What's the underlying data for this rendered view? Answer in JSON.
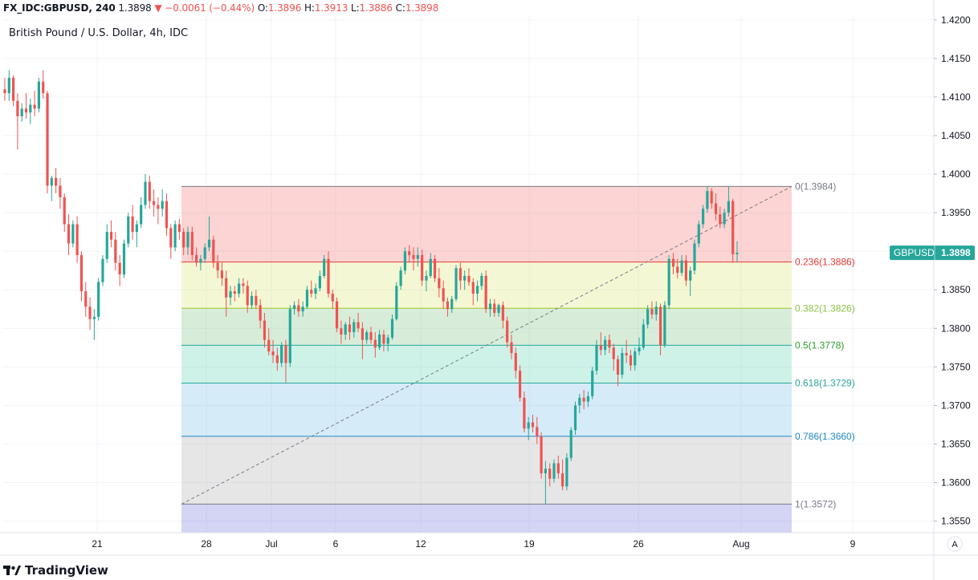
{
  "header": {
    "symbol": "FX_IDC:GBPUSD, 240",
    "last": "1.3898",
    "change": "−0.0061 (−0.44%)",
    "o_label": "O:",
    "o_value": "1.3896",
    "h_label": "H:",
    "h_value": "1.3913",
    "l_label": "L:",
    "l_value": "1.3886",
    "c_label": "C:",
    "c_value": "1.3898"
  },
  "subtitle": "British Pound / U.S. Dollar, 4h, IDC",
  "branding": "TradingView",
  "auto_scale_button": "A",
  "price_badge": {
    "symbol": "GBPUSD",
    "price": "1.3898",
    "color": "#26a69a"
  },
  "colors": {
    "up": "#26a69a",
    "down": "#ef5350",
    "grid": "#f0f3fa",
    "axis_text": "#131722"
  },
  "chart_data": {
    "type": "candlestick",
    "title": "British Pound / U.S. Dollar, 4h, IDC",
    "ylim": [
      1.3535,
      1.4205
    ],
    "y_ticks": [
      "1.4200",
      "1.4150",
      "1.4100",
      "1.4050",
      "1.4000",
      "1.3950",
      "1.3900",
      "1.3850",
      "1.3800",
      "1.3750",
      "1.3700",
      "1.3650",
      "1.3600",
      "1.3550"
    ],
    "x_ticks": [
      "21",
      "28",
      "Jul",
      "6",
      "12",
      "19",
      "26",
      "Aug",
      "9"
    ],
    "grid": true,
    "fibonacci": {
      "high": 1.3984,
      "low": 1.3572,
      "levels": [
        {
          "label": "0(1.3984)",
          "value": 1.3984,
          "line": "#787b86",
          "fill": "rgba(239,83,80,0.25)"
        },
        {
          "label": "0.236(1.3886)",
          "value": 1.3886,
          "line": "#e53935",
          "fill": "rgba(205,220,57,0.22)"
        },
        {
          "label": "0.382(1.3826)",
          "value": 1.3826,
          "line": "#9cc62a",
          "fill": "rgba(76,175,80,0.22)"
        },
        {
          "label": "0.5(1.3778)",
          "value": 1.3778,
          "line": "#26a69a",
          "fill": "rgba(38,198,150,0.22)"
        },
        {
          "label": "0.618(1.3729)",
          "value": 1.3729,
          "line": "#26a69a",
          "fill": "rgba(66,165,220,0.22)"
        },
        {
          "label": "0.786(1.3660)",
          "value": 1.366,
          "line": "#1e88c5",
          "fill": "rgba(140,140,140,0.22)"
        },
        {
          "label": "1(1.3572)",
          "value": 1.3572,
          "line": "#787b86",
          "fill": "rgba(100,100,220,0.28)"
        }
      ],
      "label_colors": [
        "#787b86",
        "#e53935",
        "#8bc34a",
        "#2e9d2e",
        "#26a69a",
        "#1e88c5",
        "#787b86"
      ]
    },
    "candles": [
      [
        1.411,
        1.4125,
        1.4095,
        1.4105
      ],
      [
        1.4105,
        1.4135,
        1.4095,
        1.4125
      ],
      [
        1.4125,
        1.4128,
        1.4088,
        1.4095
      ],
      [
        1.4095,
        1.4105,
        1.4032,
        1.4075
      ],
      [
        1.4075,
        1.4092,
        1.4068,
        1.4085
      ],
      [
        1.4085,
        1.4105,
        1.4072,
        1.408
      ],
      [
        1.408,
        1.4098,
        1.4065,
        1.409
      ],
      [
        1.409,
        1.4108,
        1.4075,
        1.4085
      ],
      [
        1.4085,
        1.4125,
        1.408,
        1.412
      ],
      [
        1.412,
        1.4135,
        1.4098,
        1.4105
      ],
      [
        1.4105,
        1.4108,
        1.3975,
        1.3985
      ],
      [
        1.3985,
        1.3998,
        1.3965,
        1.3995
      ],
      [
        1.3995,
        1.4008,
        1.3975,
        1.3985
      ],
      [
        1.3985,
        1.3995,
        1.3955,
        1.397
      ],
      [
        1.397,
        1.3975,
        1.3925,
        1.3935
      ],
      [
        1.3935,
        1.3948,
        1.3895,
        1.391
      ],
      [
        1.391,
        1.394,
        1.3905,
        1.3935
      ],
      [
        1.3935,
        1.3945,
        1.3885,
        1.3895
      ],
      [
        1.3895,
        1.39,
        1.3835,
        1.3848
      ],
      [
        1.3848,
        1.386,
        1.3815,
        1.3828
      ],
      [
        1.3828,
        1.384,
        1.3798,
        1.3812
      ],
      [
        1.3812,
        1.3825,
        1.3785,
        1.3815
      ],
      [
        1.3815,
        1.3865,
        1.381,
        1.386
      ],
      [
        1.386,
        1.3895,
        1.3855,
        1.389
      ],
      [
        1.389,
        1.3935,
        1.3885,
        1.3925
      ],
      [
        1.3925,
        1.394,
        1.3905,
        1.3915
      ],
      [
        1.3915,
        1.3925,
        1.3875,
        1.3885
      ],
      [
        1.3885,
        1.3895,
        1.3855,
        1.387
      ],
      [
        1.387,
        1.3915,
        1.3865,
        1.391
      ],
      [
        1.391,
        1.395,
        1.3905,
        1.3945
      ],
      [
        1.3945,
        1.396,
        1.3915,
        1.3925
      ],
      [
        1.3925,
        1.394,
        1.3905,
        1.3935
      ],
      [
        1.3935,
        1.397,
        1.393,
        1.396
      ],
      [
        1.396,
        1.4,
        1.3955,
        1.399
      ],
      [
        1.399,
        1.3998,
        1.3955,
        1.3965
      ],
      [
        1.3965,
        1.398,
        1.3945,
        1.396
      ],
      [
        1.396,
        1.397,
        1.3935,
        1.3955
      ],
      [
        1.3955,
        1.398,
        1.3945,
        1.3965
      ],
      [
        1.3965,
        1.3975,
        1.392,
        1.393
      ],
      [
        1.393,
        1.3935,
        1.389,
        1.3905
      ],
      [
        1.3905,
        1.394,
        1.39,
        1.3935
      ],
      [
        1.3935,
        1.3942,
        1.3915,
        1.3925
      ],
      [
        1.3925,
        1.393,
        1.3895,
        1.3905
      ],
      [
        1.3905,
        1.3932,
        1.3895,
        1.3925
      ],
      [
        1.3925,
        1.3932,
        1.3888,
        1.3895
      ],
      [
        1.3895,
        1.3905,
        1.388,
        1.3885
      ],
      [
        1.3885,
        1.3895,
        1.3875,
        1.389
      ],
      [
        1.389,
        1.391,
        1.3885,
        1.3905
      ],
      [
        1.3905,
        1.3945,
        1.39,
        1.3915
      ],
      [
        1.3915,
        1.392,
        1.3878,
        1.3885
      ],
      [
        1.3885,
        1.3895,
        1.3865,
        1.3875
      ],
      [
        1.3875,
        1.3885,
        1.3855,
        1.3865
      ],
      [
        1.3865,
        1.3875,
        1.3815,
        1.384
      ],
      [
        1.384,
        1.3855,
        1.383,
        1.3848
      ],
      [
        1.3848,
        1.3855,
        1.3835,
        1.3845
      ],
      [
        1.3845,
        1.3865,
        1.384,
        1.3858
      ],
      [
        1.3858,
        1.3865,
        1.3845,
        1.3855
      ],
      [
        1.3855,
        1.3862,
        1.382,
        1.383
      ],
      [
        1.383,
        1.3848,
        1.3825,
        1.3842
      ],
      [
        1.3842,
        1.385,
        1.3825,
        1.383
      ],
      [
        1.383,
        1.3838,
        1.38,
        1.381
      ],
      [
        1.381,
        1.382,
        1.3775,
        1.3785
      ],
      [
        1.3785,
        1.38,
        1.3765,
        1.377
      ],
      [
        1.377,
        1.3785,
        1.3755,
        1.3765
      ],
      [
        1.3765,
        1.3775,
        1.3745,
        1.3755
      ],
      [
        1.3755,
        1.3782,
        1.375,
        1.3778
      ],
      [
        1.3778,
        1.3785,
        1.373,
        1.3755
      ],
      [
        1.3755,
        1.383,
        1.375,
        1.3825
      ],
      [
        1.3825,
        1.3835,
        1.3818,
        1.383
      ],
      [
        1.383,
        1.3838,
        1.3815,
        1.3822
      ],
      [
        1.3822,
        1.3835,
        1.3815,
        1.3828
      ],
      [
        1.3828,
        1.3855,
        1.3825,
        1.385
      ],
      [
        1.385,
        1.3862,
        1.384,
        1.3845
      ],
      [
        1.3845,
        1.3858,
        1.3838,
        1.3852
      ],
      [
        1.3852,
        1.3875,
        1.3848,
        1.3868
      ],
      [
        1.3868,
        1.3895,
        1.3865,
        1.389
      ],
      [
        1.389,
        1.39,
        1.384,
        1.3845
      ],
      [
        1.3845,
        1.385,
        1.3825,
        1.3835
      ],
      [
        1.3835,
        1.384,
        1.3795,
        1.38
      ],
      [
        1.38,
        1.381,
        1.378,
        1.3792
      ],
      [
        1.3792,
        1.3808,
        1.3785,
        1.3805
      ],
      [
        1.3805,
        1.3815,
        1.3785,
        1.3795
      ],
      [
        1.3795,
        1.3812,
        1.3788,
        1.3808
      ],
      [
        1.3808,
        1.382,
        1.3795,
        1.38
      ],
      [
        1.38,
        1.3808,
        1.376,
        1.3785
      ],
      [
        1.3785,
        1.3798,
        1.378,
        1.3795
      ],
      [
        1.3795,
        1.3802,
        1.378,
        1.3785
      ],
      [
        1.3785,
        1.3795,
        1.3762,
        1.3775
      ],
      [
        1.3775,
        1.3798,
        1.3772,
        1.3792
      ],
      [
        1.3792,
        1.3798,
        1.377,
        1.378
      ],
      [
        1.378,
        1.3792,
        1.377,
        1.3788
      ],
      [
        1.3788,
        1.3818,
        1.3785,
        1.3812
      ],
      [
        1.3812,
        1.386,
        1.381,
        1.3855
      ],
      [
        1.3855,
        1.388,
        1.385,
        1.3875
      ],
      [
        1.3875,
        1.3905,
        1.387,
        1.39
      ],
      [
        1.39,
        1.3908,
        1.3885,
        1.3895
      ],
      [
        1.3895,
        1.3905,
        1.3875,
        1.389
      ],
      [
        1.389,
        1.3905,
        1.388,
        1.3895
      ],
      [
        1.3895,
        1.3902,
        1.3855,
        1.3862
      ],
      [
        1.3862,
        1.3875,
        1.3848,
        1.3868
      ],
      [
        1.3868,
        1.3898,
        1.3865,
        1.389
      ],
      [
        1.389,
        1.3895,
        1.386,
        1.3865
      ],
      [
        1.3865,
        1.3878,
        1.384,
        1.3852
      ],
      [
        1.3852,
        1.3862,
        1.3825,
        1.3835
      ],
      [
        1.3835,
        1.384,
        1.3815,
        1.3825
      ],
      [
        1.3825,
        1.3842,
        1.382,
        1.3838
      ],
      [
        1.3838,
        1.3882,
        1.3835,
        1.3878
      ],
      [
        1.3878,
        1.3885,
        1.385,
        1.3862
      ],
      [
        1.3862,
        1.3875,
        1.385,
        1.3868
      ],
      [
        1.3868,
        1.3878,
        1.3855,
        1.386
      ],
      [
        1.386,
        1.3865,
        1.383,
        1.3845
      ],
      [
        1.3845,
        1.3862,
        1.3835,
        1.3855
      ],
      [
        1.3855,
        1.3872,
        1.385,
        1.3868
      ],
      [
        1.3868,
        1.3875,
        1.382,
        1.3825
      ],
      [
        1.3825,
        1.3838,
        1.3815,
        1.3832
      ],
      [
        1.3832,
        1.3838,
        1.3815,
        1.382
      ],
      [
        1.382,
        1.3832,
        1.3815,
        1.383
      ],
      [
        1.383,
        1.3835,
        1.38,
        1.381
      ],
      [
        1.381,
        1.3815,
        1.3775,
        1.3782
      ],
      [
        1.3782,
        1.3792,
        1.376,
        1.3768
      ],
      [
        1.3768,
        1.3775,
        1.3735,
        1.3745
      ],
      [
        1.3745,
        1.3752,
        1.3705,
        1.371
      ],
      [
        1.371,
        1.3718,
        1.3665,
        1.367
      ],
      [
        1.367,
        1.3685,
        1.3655,
        1.3678
      ],
      [
        1.3678,
        1.3688,
        1.3665,
        1.3672
      ],
      [
        1.3672,
        1.3685,
        1.365,
        1.366
      ],
      [
        1.366,
        1.3665,
        1.3605,
        1.3612
      ],
      [
        1.3612,
        1.3628,
        1.3572,
        1.3618
      ],
      [
        1.3618,
        1.3625,
        1.3595,
        1.3605
      ],
      [
        1.3605,
        1.363,
        1.36,
        1.3625
      ],
      [
        1.3625,
        1.3635,
        1.3605,
        1.3612
      ],
      [
        1.3612,
        1.363,
        1.359,
        1.3595
      ],
      [
        1.3595,
        1.3638,
        1.359,
        1.3632
      ],
      [
        1.3632,
        1.3672,
        1.3628,
        1.3668
      ],
      [
        1.3668,
        1.3705,
        1.3662,
        1.37
      ],
      [
        1.37,
        1.3715,
        1.369,
        1.371
      ],
      [
        1.371,
        1.372,
        1.3695,
        1.3705
      ],
      [
        1.3705,
        1.3718,
        1.3698,
        1.3712
      ],
      [
        1.3712,
        1.375,
        1.3708,
        1.3745
      ],
      [
        1.3745,
        1.3785,
        1.374,
        1.3778
      ],
      [
        1.3778,
        1.3795,
        1.3765,
        1.3772
      ],
      [
        1.3772,
        1.379,
        1.3765,
        1.3785
      ],
      [
        1.3785,
        1.3792,
        1.3768,
        1.3775
      ],
      [
        1.3775,
        1.378,
        1.3745,
        1.376
      ],
      [
        1.376,
        1.3765,
        1.3725,
        1.374
      ],
      [
        1.374,
        1.3775,
        1.3735,
        1.3768
      ],
      [
        1.3768,
        1.3785,
        1.3755,
        1.3765
      ],
      [
        1.3765,
        1.3772,
        1.3745,
        1.3752
      ],
      [
        1.3752,
        1.3775,
        1.3745,
        1.377
      ],
      [
        1.377,
        1.3788,
        1.3765,
        1.3775
      ],
      [
        1.3775,
        1.3812,
        1.3772,
        1.3805
      ],
      [
        1.3805,
        1.383,
        1.38,
        1.3825
      ],
      [
        1.3825,
        1.3835,
        1.3812,
        1.3818
      ],
      [
        1.3818,
        1.3835,
        1.381,
        1.3828
      ],
      [
        1.3828,
        1.3832,
        1.3765,
        1.3778
      ],
      [
        1.3778,
        1.3835,
        1.3775,
        1.383
      ],
      [
        1.383,
        1.3895,
        1.3825,
        1.389
      ],
      [
        1.389,
        1.3898,
        1.387,
        1.388
      ],
      [
        1.388,
        1.389,
        1.3865,
        1.3872
      ],
      [
        1.3872,
        1.3895,
        1.3868,
        1.3888
      ],
      [
        1.3888,
        1.3895,
        1.3855,
        1.3862
      ],
      [
        1.3862,
        1.388,
        1.3842,
        1.3875
      ],
      [
        1.3875,
        1.3915,
        1.387,
        1.391
      ],
      [
        1.391,
        1.394,
        1.3905,
        1.3935
      ],
      [
        1.3935,
        1.396,
        1.393,
        1.3955
      ],
      [
        1.3955,
        1.3984,
        1.395,
        1.3978
      ],
      [
        1.3978,
        1.3982,
        1.3955,
        1.3962
      ],
      [
        1.3962,
        1.3975,
        1.394,
        1.3948
      ],
      [
        1.3948,
        1.3958,
        1.393,
        1.3935
      ],
      [
        1.3935,
        1.3955,
        1.393,
        1.395
      ],
      [
        1.395,
        1.3984,
        1.3945,
        1.3965
      ],
      [
        1.3965,
        1.3968,
        1.3885,
        1.3896
      ],
      [
        1.3896,
        1.3913,
        1.3886,
        1.3898
      ]
    ]
  }
}
